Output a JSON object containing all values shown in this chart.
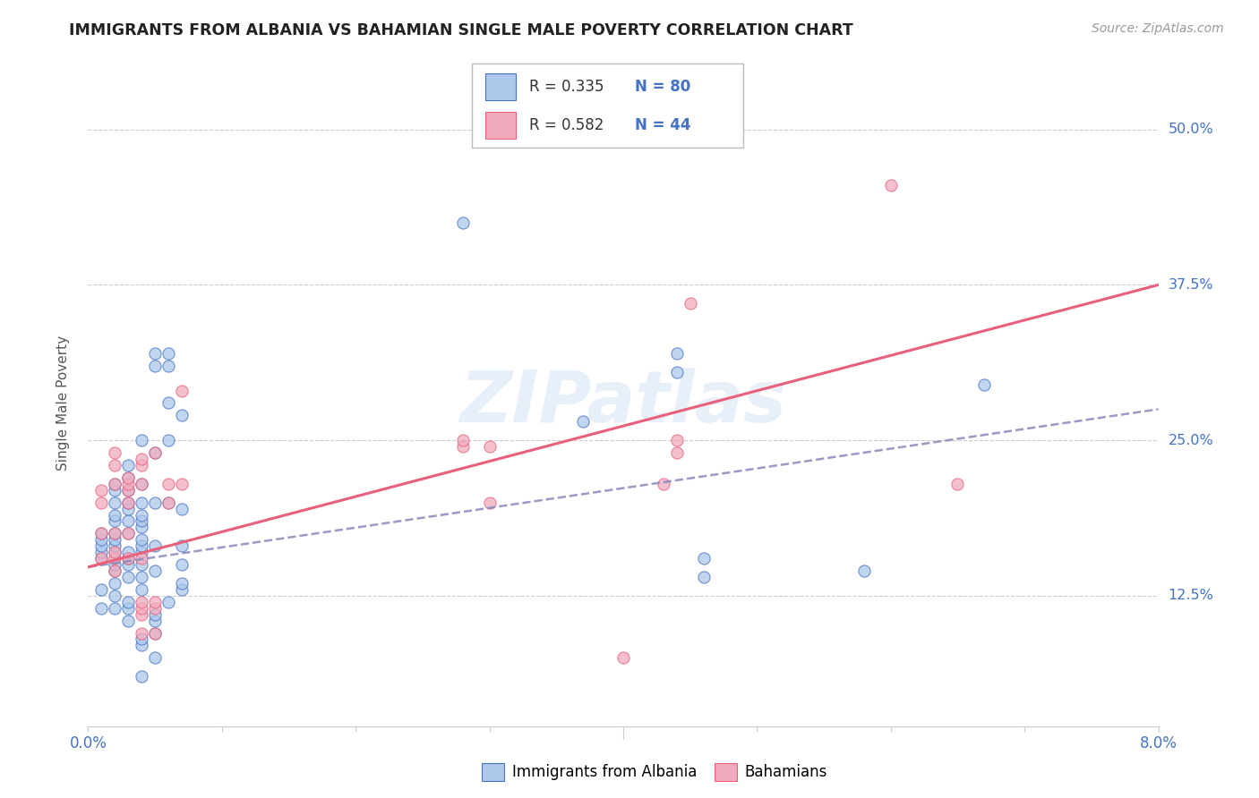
{
  "title": "IMMIGRANTS FROM ALBANIA VS BAHAMIAN SINGLE MALE POVERTY CORRELATION CHART",
  "source": "Source: ZipAtlas.com",
  "legend_label1": "Immigrants from Albania",
  "legend_label2": "Bahamians",
  "legend_R1": "R = 0.335",
  "legend_N1": "N = 80",
  "legend_R2": "R = 0.582",
  "legend_N2": "N = 44",
  "color_albania": "#adc8ea",
  "color_bahamas": "#f2abbe",
  "color_line_albania": "#4472c4",
  "color_line_bahamas": "#e8607a",
  "color_title": "#222222",
  "color_source": "#999999",
  "color_axis_labels": "#4472c4",
  "watermark": "ZIPatlas",
  "xmin": 0.0,
  "xmax": 0.08,
  "ymin": 0.02,
  "ymax": 0.54,
  "albania_points": [
    [
      0.001,
      0.115
    ],
    [
      0.001,
      0.13
    ],
    [
      0.001,
      0.155
    ],
    [
      0.001,
      0.16
    ],
    [
      0.001,
      0.165
    ],
    [
      0.001,
      0.17
    ],
    [
      0.001,
      0.175
    ],
    [
      0.002,
      0.115
    ],
    [
      0.002,
      0.125
    ],
    [
      0.002,
      0.135
    ],
    [
      0.002,
      0.145
    ],
    [
      0.002,
      0.15
    ],
    [
      0.002,
      0.16
    ],
    [
      0.002,
      0.165
    ],
    [
      0.002,
      0.17
    ],
    [
      0.002,
      0.175
    ],
    [
      0.002,
      0.185
    ],
    [
      0.002,
      0.19
    ],
    [
      0.002,
      0.2
    ],
    [
      0.002,
      0.21
    ],
    [
      0.002,
      0.215
    ],
    [
      0.003,
      0.105
    ],
    [
      0.003,
      0.115
    ],
    [
      0.003,
      0.12
    ],
    [
      0.003,
      0.14
    ],
    [
      0.003,
      0.15
    ],
    [
      0.003,
      0.155
    ],
    [
      0.003,
      0.16
    ],
    [
      0.003,
      0.175
    ],
    [
      0.003,
      0.185
    ],
    [
      0.003,
      0.195
    ],
    [
      0.003,
      0.2
    ],
    [
      0.003,
      0.21
    ],
    [
      0.003,
      0.22
    ],
    [
      0.003,
      0.23
    ],
    [
      0.004,
      0.06
    ],
    [
      0.004,
      0.085
    ],
    [
      0.004,
      0.09
    ],
    [
      0.004,
      0.13
    ],
    [
      0.004,
      0.14
    ],
    [
      0.004,
      0.15
    ],
    [
      0.004,
      0.16
    ],
    [
      0.004,
      0.165
    ],
    [
      0.004,
      0.17
    ],
    [
      0.004,
      0.18
    ],
    [
      0.004,
      0.185
    ],
    [
      0.004,
      0.19
    ],
    [
      0.004,
      0.2
    ],
    [
      0.004,
      0.215
    ],
    [
      0.004,
      0.25
    ],
    [
      0.005,
      0.075
    ],
    [
      0.005,
      0.095
    ],
    [
      0.005,
      0.105
    ],
    [
      0.005,
      0.11
    ],
    [
      0.005,
      0.145
    ],
    [
      0.005,
      0.165
    ],
    [
      0.005,
      0.2
    ],
    [
      0.005,
      0.24
    ],
    [
      0.005,
      0.31
    ],
    [
      0.005,
      0.32
    ],
    [
      0.006,
      0.12
    ],
    [
      0.006,
      0.2
    ],
    [
      0.006,
      0.25
    ],
    [
      0.006,
      0.28
    ],
    [
      0.006,
      0.31
    ],
    [
      0.006,
      0.32
    ],
    [
      0.007,
      0.13
    ],
    [
      0.007,
      0.135
    ],
    [
      0.007,
      0.15
    ],
    [
      0.007,
      0.165
    ],
    [
      0.007,
      0.195
    ],
    [
      0.007,
      0.27
    ],
    [
      0.028,
      0.425
    ],
    [
      0.037,
      0.265
    ],
    [
      0.044,
      0.305
    ],
    [
      0.044,
      0.32
    ],
    [
      0.046,
      0.14
    ],
    [
      0.046,
      0.155
    ],
    [
      0.058,
      0.145
    ],
    [
      0.067,
      0.295
    ]
  ],
  "bahamas_points": [
    [
      0.001,
      0.155
    ],
    [
      0.001,
      0.175
    ],
    [
      0.001,
      0.2
    ],
    [
      0.001,
      0.21
    ],
    [
      0.002,
      0.145
    ],
    [
      0.002,
      0.155
    ],
    [
      0.002,
      0.16
    ],
    [
      0.002,
      0.175
    ],
    [
      0.002,
      0.215
    ],
    [
      0.002,
      0.23
    ],
    [
      0.002,
      0.24
    ],
    [
      0.003,
      0.155
    ],
    [
      0.003,
      0.175
    ],
    [
      0.003,
      0.2
    ],
    [
      0.003,
      0.21
    ],
    [
      0.003,
      0.215
    ],
    [
      0.003,
      0.22
    ],
    [
      0.004,
      0.095
    ],
    [
      0.004,
      0.11
    ],
    [
      0.004,
      0.115
    ],
    [
      0.004,
      0.12
    ],
    [
      0.004,
      0.155
    ],
    [
      0.004,
      0.215
    ],
    [
      0.004,
      0.23
    ],
    [
      0.004,
      0.235
    ],
    [
      0.005,
      0.095
    ],
    [
      0.005,
      0.115
    ],
    [
      0.005,
      0.12
    ],
    [
      0.005,
      0.24
    ],
    [
      0.006,
      0.2
    ],
    [
      0.006,
      0.215
    ],
    [
      0.007,
      0.215
    ],
    [
      0.007,
      0.29
    ],
    [
      0.028,
      0.245
    ],
    [
      0.028,
      0.25
    ],
    [
      0.03,
      0.2
    ],
    [
      0.03,
      0.245
    ],
    [
      0.04,
      0.075
    ],
    [
      0.043,
      0.215
    ],
    [
      0.044,
      0.24
    ],
    [
      0.044,
      0.25
    ],
    [
      0.045,
      0.36
    ],
    [
      0.06,
      0.455
    ],
    [
      0.065,
      0.215
    ]
  ],
  "albania_trend_x": [
    0.0,
    0.08
  ],
  "albania_trend_y": [
    0.148,
    0.275
  ],
  "bahamas_trend_x": [
    0.0,
    0.08
  ],
  "bahamas_trend_y": [
    0.148,
    0.375
  ],
  "background_color": "#ffffff",
  "grid_color": "#cccccc",
  "yticks": [
    0.125,
    0.25,
    0.375,
    0.5
  ],
  "ytick_labels": [
    "12.5%",
    "25.0%",
    "37.5%",
    "50.0%"
  ]
}
